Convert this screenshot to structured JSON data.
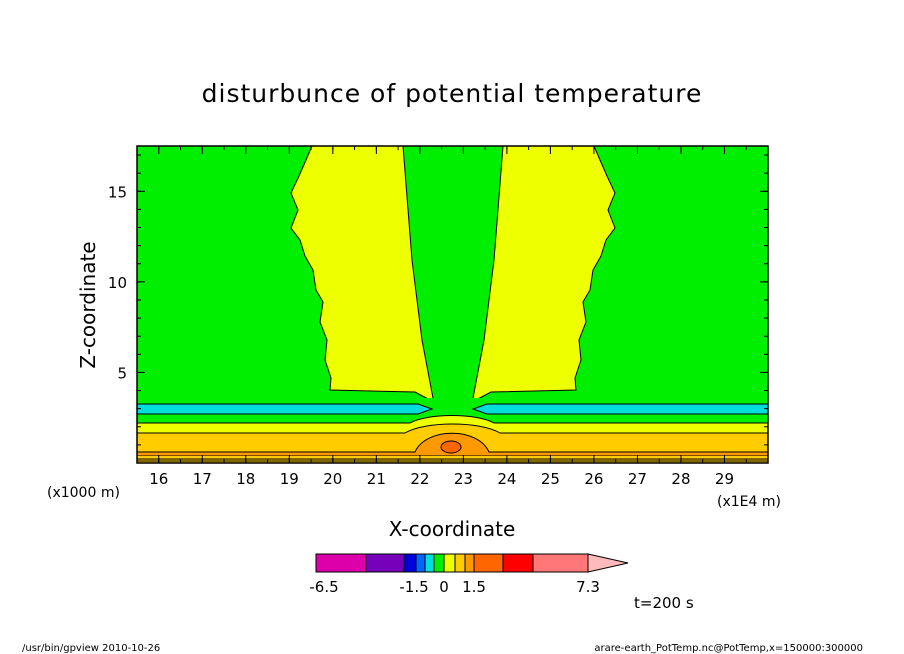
{
  "chart_data": {
    "type": "contour",
    "title": "disturbunce of potential temperature",
    "xlabel": "X-coordinate",
    "ylabel": "Z-coordinate",
    "x_unit": "(x1E4 m)",
    "y_unit": "(x1000 m)",
    "xlim": [
      15.5,
      30
    ],
    "ylim": [
      0,
      17.5
    ],
    "x_ticks": [
      "16",
      "17",
      "18",
      "19",
      "20",
      "21",
      "22",
      "23",
      "24",
      "25",
      "26",
      "27",
      "28",
      "29"
    ],
    "y_ticks": [
      "5",
      "10",
      "15"
    ],
    "x_tick_values": [
      16,
      17,
      18,
      19,
      20,
      21,
      22,
      23,
      24,
      25,
      26,
      27,
      28,
      29
    ],
    "y_tick_values": [
      5,
      10,
      15
    ],
    "time_label": "t=200 s",
    "colorbar": {
      "labels": [
        "-6.5",
        "-1.5",
        "0",
        "1.5",
        "7.3"
      ],
      "label_values": [
        -6.5,
        -1.5,
        0,
        1.5,
        7.3
      ],
      "colors": [
        "#dd00aa",
        "#7700bb",
        "#0000dd",
        "#0066ff",
        "#00dddd",
        "#00ee00",
        "#eeff00",
        "#ffcc00",
        "#ff9900",
        "#ff6600",
        "#ff0000",
        "#ff7777",
        "#ffbbbb"
      ]
    },
    "regions": {
      "background": "#00ee00",
      "plume": "#eeff00",
      "cool_band": "#00dddd",
      "warm_layer": "#ffcc00",
      "warmer_layer": "#ff9900",
      "core": "#ff6600"
    }
  },
  "footer": {
    "left": "/usr/bin/gpview   2010-10-26",
    "right": "arare-earth_PotTemp.nc@PotTemp,x=150000:300000"
  }
}
